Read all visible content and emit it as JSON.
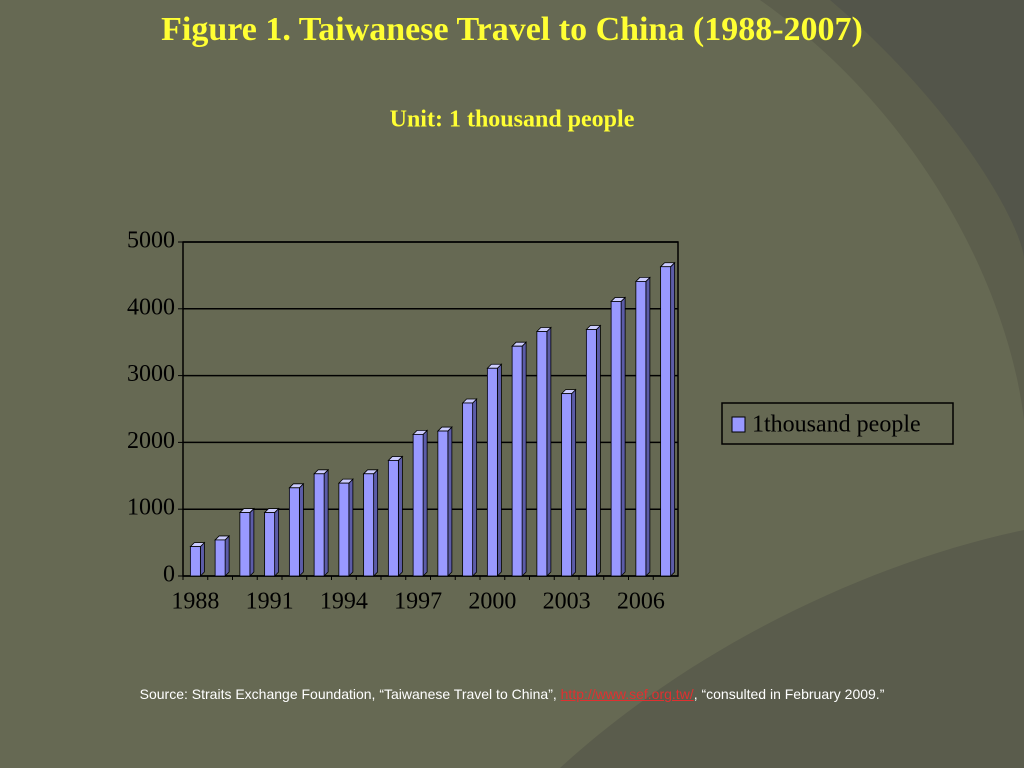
{
  "chart_data": {
    "type": "bar",
    "title": "Figure 1.  Taiwanese Travel to China (1988-2007)",
    "subtitle": "Unit: 1 thousand people",
    "categories": [
      "1988",
      null,
      null,
      "1991",
      null,
      null,
      "1994",
      null,
      null,
      "1997",
      null,
      null,
      "2000",
      null,
      null,
      "2003",
      null,
      null,
      "2006",
      null
    ],
    "series": [
      {
        "name": "1thousand people",
        "color": "#9999ff",
        "values": [
          440,
          540,
          950,
          950,
          1320,
          1530,
          1390,
          1530,
          1730,
          2120,
          2170,
          2590,
          3110,
          3440,
          3660,
          2730,
          3690,
          4110,
          4410,
          4630
        ]
      }
    ],
    "ylim": [
      0,
      5000
    ],
    "yticks": [
      0,
      1000,
      2000,
      3000,
      4000,
      5000
    ],
    "grid": true,
    "source": [
      "Source: Straits Exchange Foundation, “Taiwanese Travel to China”, ",
      "http://www.sef.org.tw/",
      ", “consulted in February 2009.”"
    ]
  }
}
